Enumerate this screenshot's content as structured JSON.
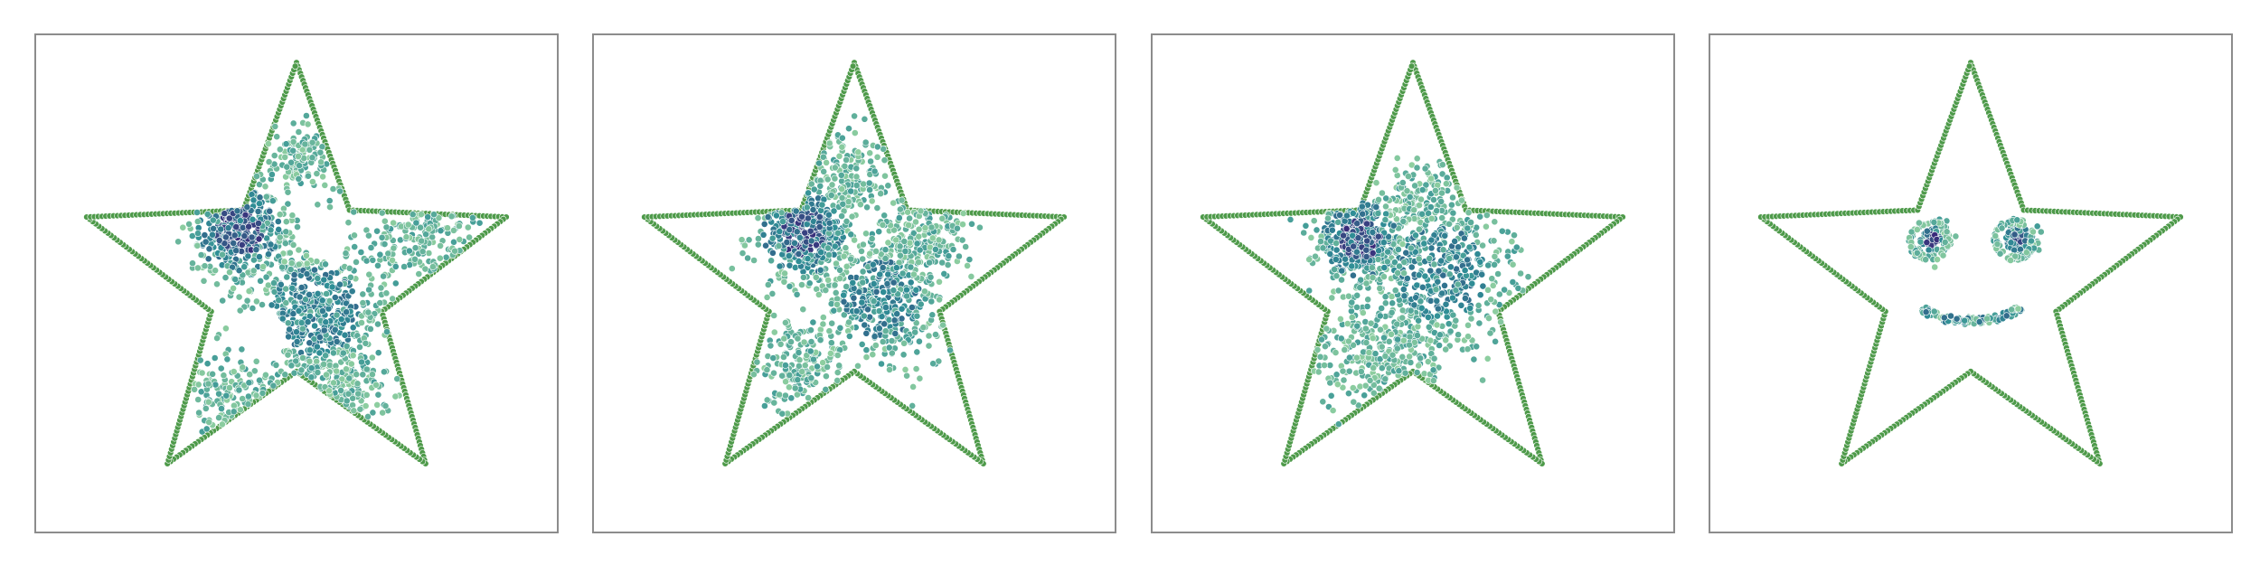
{
  "chart_data": [
    {
      "type": "scatter",
      "panel": 1,
      "boundary": {
        "shape": "star",
        "vertices": [
          [
            0,
            0.96
          ],
          [
            0.23,
            0.32
          ],
          [
            0.91,
            0.29
          ],
          [
            0.37,
            -0.12
          ],
          [
            0.56,
            -0.78
          ],
          [
            0,
            -0.38
          ],
          [
            -0.56,
            -0.78
          ],
          [
            -0.37,
            -0.12
          ],
          [
            -0.91,
            0.29
          ],
          [
            -0.23,
            0.32
          ]
        ],
        "color": "#4e9a4a"
      },
      "clusters": [
        {
          "center": [
            -0.25,
            0.23
          ],
          "spread": 0.1,
          "count": 380,
          "density": "high"
        },
        {
          "center": [
            0.08,
            -0.12
          ],
          "spread": 0.16,
          "count": 520,
          "density": "mid"
        },
        {
          "center": [
            0.55,
            0.24
          ],
          "spread": 0.12,
          "count": 150,
          "density": "low"
        },
        {
          "center": [
            0.02,
            0.55
          ],
          "spread": 0.07,
          "count": 120,
          "density": "low"
        },
        {
          "center": [
            -0.28,
            -0.5
          ],
          "spread": 0.1,
          "count": 130,
          "density": "low"
        },
        {
          "center": [
            0.2,
            -0.45
          ],
          "spread": 0.1,
          "count": 150,
          "density": "low"
        }
      ],
      "holes": [
        {
          "center": [
            0.12,
            0.2
          ],
          "radius": 0.1
        },
        {
          "center": [
            -0.14,
            -0.22
          ],
          "radius": 0.1
        }
      ],
      "xlim": [
        -1,
        1
      ],
      "ylim": [
        -1,
        1
      ]
    },
    {
      "type": "scatter",
      "panel": 2,
      "boundary": {
        "shape": "star",
        "vertices": [
          [
            0,
            0.96
          ],
          [
            0.23,
            0.32
          ],
          [
            0.91,
            0.29
          ],
          [
            0.37,
            -0.12
          ],
          [
            0.56,
            -0.78
          ],
          [
            0,
            -0.38
          ],
          [
            -0.56,
            -0.78
          ],
          [
            -0.37,
            -0.12
          ],
          [
            -0.91,
            0.29
          ],
          [
            -0.23,
            0.32
          ]
        ],
        "color": "#4e9a4a"
      },
      "clusters": [
        {
          "center": [
            -0.22,
            0.22
          ],
          "spread": 0.1,
          "count": 420,
          "density": "high"
        },
        {
          "center": [
            0.12,
            -0.07
          ],
          "spread": 0.14,
          "count": 420,
          "density": "mid"
        },
        {
          "center": [
            0.3,
            0.21
          ],
          "spread": 0.1,
          "count": 180,
          "density": "low"
        },
        {
          "center": [
            -0.02,
            0.48
          ],
          "spread": 0.1,
          "count": 150,
          "density": "low"
        },
        {
          "center": [
            -0.25,
            -0.35
          ],
          "spread": 0.1,
          "count": 170,
          "density": "low"
        }
      ],
      "holes": [
        {
          "center": [
            -0.16,
            -0.1
          ],
          "radius": 0.05
        }
      ],
      "xlim": [
        -1,
        1
      ],
      "ylim": [
        -1,
        1
      ]
    },
    {
      "type": "scatter",
      "panel": 3,
      "boundary": {
        "shape": "star",
        "vertices": [
          [
            0,
            0.96
          ],
          [
            0.23,
            0.32
          ],
          [
            0.91,
            0.29
          ],
          [
            0.37,
            -0.12
          ],
          [
            0.56,
            -0.78
          ],
          [
            0,
            -0.38
          ],
          [
            -0.56,
            -0.78
          ],
          [
            -0.37,
            -0.12
          ],
          [
            -0.91,
            0.29
          ],
          [
            -0.23,
            0.32
          ]
        ],
        "color": "#4e9a4a"
      },
      "clusters": [
        {
          "center": [
            -0.23,
            0.19
          ],
          "spread": 0.09,
          "count": 420,
          "density": "high"
        },
        {
          "center": [
            0.12,
            0.05
          ],
          "spread": 0.17,
          "count": 520,
          "density": "mid"
        },
        {
          "center": [
            -0.15,
            -0.3
          ],
          "spread": 0.14,
          "count": 260,
          "density": "low"
        },
        {
          "center": [
            0.05,
            0.38
          ],
          "spread": 0.09,
          "count": 110,
          "density": "low"
        }
      ],
      "holes": [],
      "xlim": [
        -1,
        1
      ],
      "ylim": [
        -1,
        1
      ]
    },
    {
      "type": "scatter",
      "panel": 4,
      "boundary": {
        "shape": "star",
        "vertices": [
          [
            0,
            0.96
          ],
          [
            0.23,
            0.32
          ],
          [
            0.91,
            0.29
          ],
          [
            0.37,
            -0.12
          ],
          [
            0.56,
            -0.78
          ],
          [
            0,
            -0.38
          ],
          [
            -0.56,
            -0.78
          ],
          [
            -0.37,
            -0.12
          ],
          [
            -0.91,
            0.29
          ],
          [
            -0.23,
            0.32
          ]
        ],
        "color": "#4e9a4a"
      },
      "clusters": [
        {
          "center": [
            -0.16,
            0.19
          ],
          "spread": 0.035,
          "count": 90,
          "density": "high"
        },
        {
          "center": [
            0.21,
            0.19
          ],
          "spread": 0.035,
          "count": 90,
          "density": "high"
        }
      ],
      "rings": [
        {
          "center": [
            -0.18,
            0.19
          ],
          "radius": 0.08,
          "count": 70
        },
        {
          "center": [
            0.19,
            0.19
          ],
          "radius": 0.08,
          "count": 70
        }
      ],
      "smile": {
        "center": [
          0.0,
          -0.08
        ],
        "radius_x": 0.22,
        "radius_y": 0.08,
        "count": 130
      },
      "holes": [],
      "xlim": [
        -1,
        1
      ],
      "ylim": [
        -1,
        1
      ]
    }
  ],
  "colors": {
    "low": "#8fcfa0",
    "mid": "#2f8f96",
    "high": "#3a2a7a",
    "boundary_fill": "#4e9a4a",
    "marker_edge": "#ffffff",
    "frame": "#8c8c8c"
  }
}
